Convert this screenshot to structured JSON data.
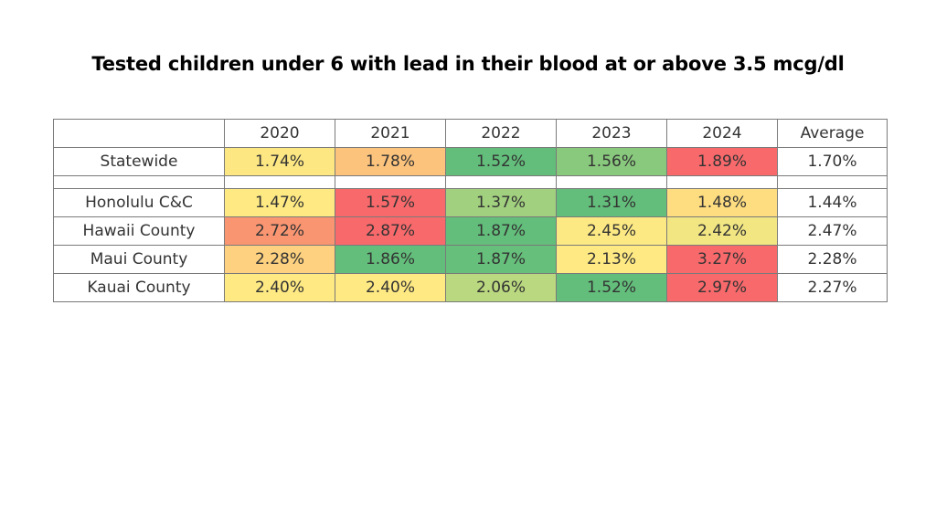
{
  "title": "Tested children under 6 with lead in their blood at or above 3.5 mcg/dl",
  "chart_data": {
    "type": "heatmap",
    "columns": [
      "2020",
      "2021",
      "2022",
      "2023",
      "2024",
      "Average"
    ],
    "rows": [
      {
        "label": "Statewide",
        "values": [
          "1.74%",
          "1.78%",
          "1.52%",
          "1.56%",
          "1.89%"
        ],
        "average": "1.70%",
        "colors": [
          "#fde783",
          "#fcc37c",
          "#63be7b",
          "#89c97d",
          "#f8696b"
        ]
      },
      {
        "label": "Honolulu C&C",
        "values": [
          "1.47%",
          "1.57%",
          "1.37%",
          "1.31%",
          "1.48%"
        ],
        "average": "1.44%",
        "colors": [
          "#fee983",
          "#f8696b",
          "#a1d07f",
          "#63be7b",
          "#fedd81"
        ]
      },
      {
        "label": "Hawaii County",
        "values": [
          "2.72%",
          "2.87%",
          "1.87%",
          "2.45%",
          "2.42%"
        ],
        "average": "2.47%",
        "colors": [
          "#f99571",
          "#f8696b",
          "#63be7b",
          "#fde983",
          "#f2e683"
        ]
      },
      {
        "label": "Maui County",
        "values": [
          "2.28%",
          "1.86%",
          "1.87%",
          "2.13%",
          "3.27%"
        ],
        "average": "2.28%",
        "colors": [
          "#fdd17f",
          "#63be7b",
          "#66bf7b",
          "#fee983",
          "#f8696b"
        ]
      },
      {
        "label": "Kauai County",
        "values": [
          "2.40%",
          "2.40%",
          "2.06%",
          "1.52%",
          "2.97%"
        ],
        "average": "2.27%",
        "colors": [
          "#fee983",
          "#fee983",
          "#bad87f",
          "#63be7b",
          "#f8696b"
        ]
      }
    ],
    "spacer_after_row": 0
  }
}
